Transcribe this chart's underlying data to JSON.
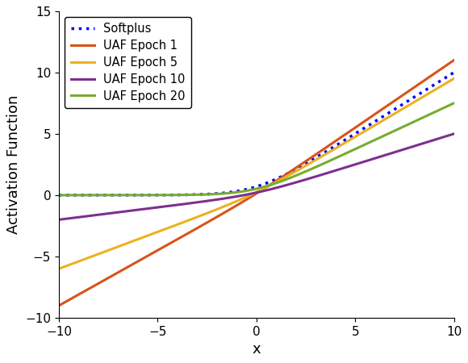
{
  "title": "",
  "xlabel": "x",
  "ylabel": "Activation Function",
  "xlim": [
    -10,
    10
  ],
  "ylim": [
    -10,
    15
  ],
  "x_ticks": [
    -10,
    -5,
    0,
    5,
    10
  ],
  "y_ticks": [
    -10,
    -5,
    0,
    5,
    10,
    15
  ],
  "background_color": "#ffffff",
  "softplus_color": "#0000FF",
  "uaf1_color": "#D95319",
  "uaf5_color": "#EDB120",
  "uaf10_color": "#7E2F8E",
  "uaf20_color": "#77AC30",
  "line_width": 2.2,
  "softplus_lw": 2.5,
  "legend_labels": [
    "Softplus",
    "UAF Epoch 1",
    "UAF Epoch 5",
    "UAF Epoch 10",
    "UAF Epoch 20"
  ],
  "uaf1_a": 0.2,
  "uaf1_b": 0.9,
  "uaf5_a": 0.35,
  "uaf5_b": 0.6,
  "uaf10_a": 0.3,
  "uaf10_b": 0.2,
  "uaf20_a": 0.75,
  "uaf20_b": 0.0
}
